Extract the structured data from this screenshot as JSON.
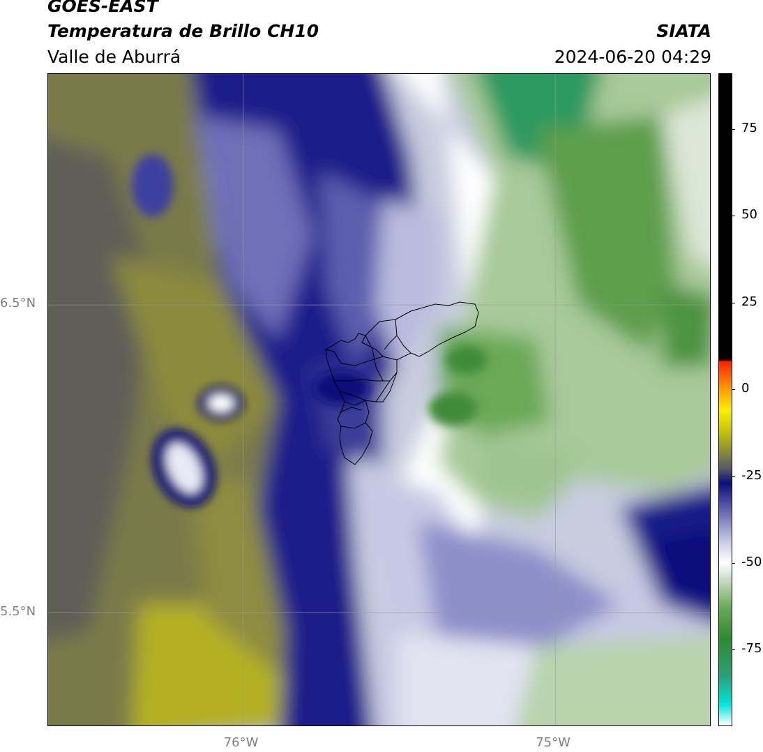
{
  "header": {
    "satellite": "GOES-EAST",
    "product": "Temperatura de Brillo CH10",
    "region": "Valle de Aburrá",
    "agency": "SIATA",
    "datetime": "2024-06-20 04:29"
  },
  "map": {
    "lat_labels": [
      "6.5°N",
      "5.5°N"
    ],
    "lon_labels": [
      "76°W",
      "75°W"
    ],
    "lat_values": [
      6.5,
      5.5
    ],
    "lon_values": [
      -76,
      -75
    ],
    "lon_range": [
      -76.625,
      -74.5
    ],
    "lat_range": [
      5.13,
      7.25
    ]
  },
  "colorbar": {
    "labels": [
      "75",
      "50",
      "25",
      "0",
      "-25",
      "-50",
      "-75"
    ],
    "values": [
      75,
      50,
      25,
      0,
      -25,
      -50,
      -75
    ],
    "range": [
      -97,
      91
    ],
    "stops": [
      {
        "v": -97,
        "color": "#ffffff"
      },
      {
        "v": -91,
        "color": "#00e5e0"
      },
      {
        "v": -83,
        "color": "#2aa37a"
      },
      {
        "v": -72,
        "color": "#2f8a2f"
      },
      {
        "v": -63,
        "color": "#6aa956"
      },
      {
        "v": -55,
        "color": "#c9dcc2"
      },
      {
        "v": -50,
        "color": "#ffffff"
      },
      {
        "v": -44,
        "color": "#c9cae4"
      },
      {
        "v": -36,
        "color": "#6f72b4"
      },
      {
        "v": -27,
        "color": "#0b0e7d"
      },
      {
        "v": -23,
        "color": "#575766"
      },
      {
        "v": -18,
        "color": "#8a8a3a"
      },
      {
        "v": -12,
        "color": "#c8c400"
      },
      {
        "v": -6,
        "color": "#ffee00"
      },
      {
        "v": 1,
        "color": "#ff9000"
      },
      {
        "v": 8,
        "color": "#ff2000"
      },
      {
        "v": 8.5,
        "color": "#000000"
      },
      {
        "v": 91,
        "color": "#000000"
      }
    ]
  }
}
